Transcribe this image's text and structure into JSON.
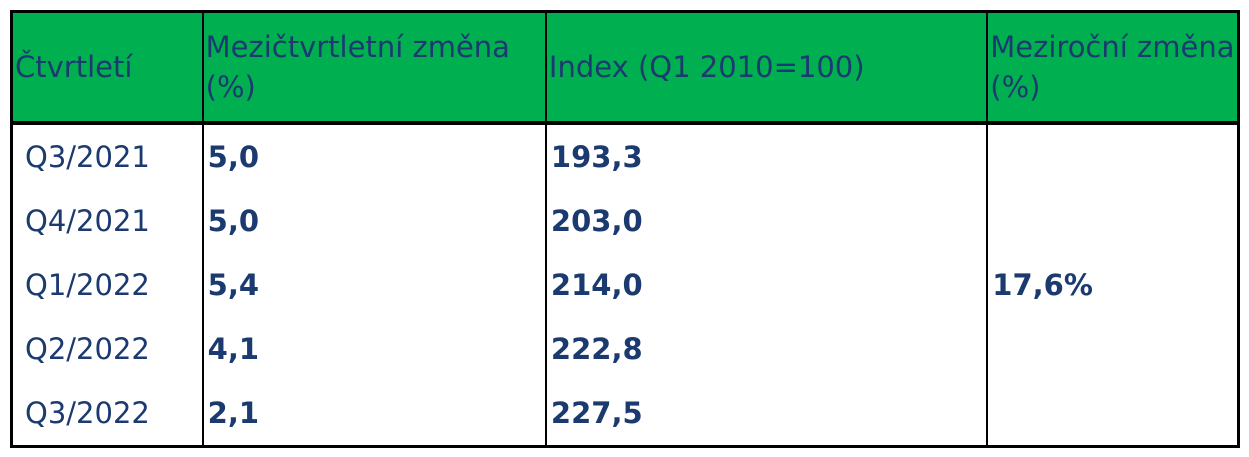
{
  "table": {
    "header": [
      "Čtvrtletí",
      "Mezičtvrtletní změna (%)",
      "Index (Q1 2010=100)",
      "Meziroční změna (%)"
    ],
    "rows": [
      [
        "Q3/2021",
        "5,0",
        "193,3"
      ],
      [
        "Q4/2021",
        "5,0",
        "203,0"
      ],
      [
        "Q1/2022",
        "5,4",
        "214,0"
      ],
      [
        "Q2/2022",
        "4,1",
        "222,8"
      ],
      [
        "Q3/2022",
        "2,1",
        "227,5"
      ]
    ],
    "yearly_change": "17,6%"
  }
}
